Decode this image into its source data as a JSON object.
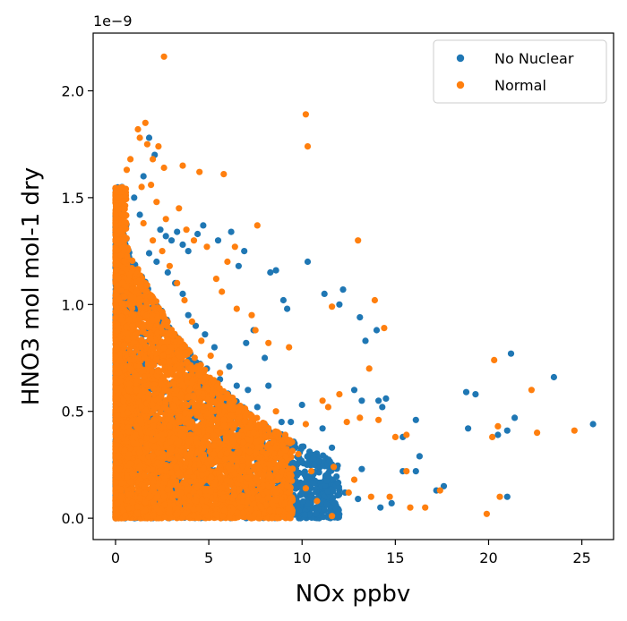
{
  "chart_data": {
    "type": "scatter",
    "xlabel": "NOx ppbv",
    "ylabel": "HNO3 mol mol-1 dry",
    "y_offset_label": "1e−9",
    "xlim": [
      -1.2,
      26.7
    ],
    "ylim": [
      -0.1,
      2.27
    ],
    "xticks": [
      0,
      5,
      10,
      15,
      20,
      25
    ],
    "xtick_labels": [
      "0",
      "5",
      "10",
      "15",
      "20",
      "25"
    ],
    "yticks": [
      0.0,
      0.5,
      1.0,
      1.5,
      2.0
    ],
    "ytick_labels": [
      "0.0",
      "0.5",
      "1.0",
      "1.5",
      "2.0"
    ],
    "grid": false,
    "legend_position": "top-right",
    "series": [
      {
        "name": "No Nuclear",
        "color": "#1f77b4",
        "points": [
          [
            1.5,
            1.6
          ],
          [
            1.8,
            1.78
          ],
          [
            2.1,
            1.7
          ],
          [
            1.3,
            1.42
          ],
          [
            1.0,
            1.5
          ],
          [
            2.4,
            1.35
          ],
          [
            2.7,
            1.32
          ],
          [
            3.0,
            1.3
          ],
          [
            3.3,
            1.34
          ],
          [
            3.6,
            1.28
          ],
          [
            3.9,
            1.25
          ],
          [
            4.4,
            1.33
          ],
          [
            4.7,
            1.37
          ],
          [
            5.5,
            1.3
          ],
          [
            6.2,
            1.34
          ],
          [
            6.9,
            1.25
          ],
          [
            6.6,
            1.18
          ],
          [
            8.3,
            1.15
          ],
          [
            8.6,
            1.16
          ],
          [
            9.0,
            1.02
          ],
          [
            9.2,
            0.98
          ],
          [
            10.3,
            1.2
          ],
          [
            11.2,
            1.05
          ],
          [
            12.2,
            1.07
          ],
          [
            13.1,
            0.94
          ],
          [
            14.0,
            0.88
          ],
          [
            12.0,
            1.0
          ],
          [
            13.4,
            0.83
          ],
          [
            12.8,
            0.6
          ],
          [
            13.2,
            0.55
          ],
          [
            14.1,
            0.55
          ],
          [
            14.5,
            0.56
          ],
          [
            14.3,
            0.52
          ],
          [
            16.1,
            0.46
          ],
          [
            16.3,
            0.29
          ],
          [
            17.6,
            0.15
          ],
          [
            17.2,
            0.13
          ],
          [
            18.9,
            0.42
          ],
          [
            18.8,
            0.59
          ],
          [
            19.3,
            0.58
          ],
          [
            20.5,
            0.39
          ],
          [
            21.2,
            0.77
          ],
          [
            21.4,
            0.47
          ],
          [
            21.0,
            0.41
          ],
          [
            23.5,
            0.66
          ],
          [
            25.6,
            0.44
          ],
          [
            21.0,
            0.1
          ],
          [
            15.4,
            0.22
          ],
          [
            14.8,
            0.07
          ],
          [
            16.1,
            0.22
          ],
          [
            15.4,
            0.38
          ],
          [
            13.2,
            0.23
          ],
          [
            11.6,
            0.33
          ],
          [
            11.1,
            0.42
          ],
          [
            10.0,
            0.53
          ],
          [
            9.4,
            0.45
          ],
          [
            8.9,
            0.45
          ],
          [
            7.6,
            0.52
          ],
          [
            7.1,
            0.6
          ],
          [
            6.5,
            0.62
          ],
          [
            6.1,
            0.71
          ],
          [
            5.3,
            0.8
          ],
          [
            4.8,
            0.86
          ],
          [
            4.3,
            0.9
          ],
          [
            3.9,
            0.95
          ],
          [
            3.6,
            1.05
          ],
          [
            3.2,
            1.1
          ],
          [
            2.8,
            1.15
          ],
          [
            2.2,
            1.2
          ],
          [
            1.8,
            1.24
          ],
          [
            7.0,
            0.82
          ],
          [
            7.4,
            0.88
          ],
          [
            8.0,
            0.75
          ],
          [
            8.2,
            0.62
          ],
          [
            9.6,
            0.35
          ],
          [
            10.6,
            0.28
          ],
          [
            11.4,
            0.2
          ],
          [
            12.3,
            0.12
          ],
          [
            13.0,
            0.09
          ],
          [
            14.2,
            0.05
          ],
          [
            9.9,
            0.15
          ],
          [
            9.2,
            0.2
          ],
          [
            8.7,
            0.29
          ],
          [
            8.3,
            0.35
          ],
          [
            7.8,
            0.4
          ],
          [
            6.8,
            0.44
          ],
          [
            6.3,
            0.48
          ],
          [
            5.8,
            0.55
          ],
          [
            5.6,
            0.65
          ],
          [
            4.9,
            0.7
          ]
        ]
      },
      {
        "name": "Normal",
        "color": "#ff7f0e",
        "points": [
          [
            2.6,
            2.16
          ],
          [
            1.6,
            1.85
          ],
          [
            1.2,
            1.82
          ],
          [
            1.3,
            1.78
          ],
          [
            1.7,
            1.75
          ],
          [
            2.3,
            1.74
          ],
          [
            2.0,
            1.68
          ],
          [
            0.8,
            1.68
          ],
          [
            0.6,
            1.63
          ],
          [
            2.6,
            1.64
          ],
          [
            3.6,
            1.65
          ],
          [
            4.5,
            1.62
          ],
          [
            5.8,
            1.61
          ],
          [
            1.4,
            1.55
          ],
          [
            1.9,
            1.56
          ],
          [
            3.4,
            1.45
          ],
          [
            2.2,
            1.48
          ],
          [
            2.7,
            1.4
          ],
          [
            3.8,
            1.35
          ],
          [
            4.2,
            1.3
          ],
          [
            4.9,
            1.27
          ],
          [
            6.4,
            1.27
          ],
          [
            7.6,
            1.37
          ],
          [
            6.0,
            1.2
          ],
          [
            5.4,
            1.12
          ],
          [
            5.7,
            1.06
          ],
          [
            6.5,
            0.98
          ],
          [
            7.3,
            0.95
          ],
          [
            7.5,
            0.88
          ],
          [
            8.2,
            0.82
          ],
          [
            9.3,
            0.8
          ],
          [
            10.2,
            1.89
          ],
          [
            10.3,
            1.74
          ],
          [
            13.0,
            1.3
          ],
          [
            11.6,
            0.99
          ],
          [
            13.9,
            1.02
          ],
          [
            14.4,
            0.89
          ],
          [
            13.6,
            0.7
          ],
          [
            12.0,
            0.58
          ],
          [
            11.1,
            0.55
          ],
          [
            11.4,
            0.52
          ],
          [
            12.4,
            0.45
          ],
          [
            10.2,
            0.44
          ],
          [
            9.1,
            0.39
          ],
          [
            13.1,
            0.47
          ],
          [
            14.1,
            0.46
          ],
          [
            15.0,
            0.38
          ],
          [
            15.6,
            0.39
          ],
          [
            15.6,
            0.22
          ],
          [
            16.6,
            0.05
          ],
          [
            15.8,
            0.05
          ],
          [
            17.4,
            0.13
          ],
          [
            19.9,
            0.02
          ],
          [
            20.3,
            0.74
          ],
          [
            20.2,
            0.38
          ],
          [
            20.6,
            0.1
          ],
          [
            20.5,
            0.43
          ],
          [
            22.3,
            0.6
          ],
          [
            22.6,
            0.4
          ],
          [
            24.6,
            0.41
          ],
          [
            11.6,
            0.01
          ],
          [
            12.5,
            0.12
          ],
          [
            13.7,
            0.1
          ],
          [
            10.8,
            0.08
          ],
          [
            10.2,
            0.14
          ],
          [
            8.9,
            0.22
          ],
          [
            8.1,
            0.3
          ],
          [
            7.4,
            0.4
          ],
          [
            6.6,
            0.5
          ],
          [
            6.0,
            0.58
          ],
          [
            5.6,
            0.68
          ],
          [
            5.1,
            0.76
          ],
          [
            4.6,
            0.83
          ],
          [
            4.1,
            0.92
          ],
          [
            3.7,
            1.02
          ],
          [
            3.3,
            1.1
          ],
          [
            2.9,
            1.18
          ],
          [
            2.5,
            1.25
          ],
          [
            2.0,
            1.3
          ],
          [
            1.5,
            1.38
          ],
          [
            8.6,
            0.5
          ],
          [
            9.8,
            0.3
          ],
          [
            10.5,
            0.22
          ],
          [
            11.7,
            0.24
          ],
          [
            12.8,
            0.18
          ],
          [
            14.7,
            0.1
          ],
          [
            7.9,
            0.2
          ],
          [
            7.1,
            0.28
          ],
          [
            6.3,
            0.36
          ],
          [
            5.5,
            0.46
          ]
        ]
      }
    ],
    "cloud_series": [
      {
        "series": "No Nuclear",
        "color": "#1f77b4",
        "count": 2600,
        "seed": 11,
        "xmax": 12.0
      },
      {
        "series": "Normal",
        "color": "#ff7f0e",
        "count": 5200,
        "seed": 29,
        "xmax": 9.5
      }
    ]
  }
}
